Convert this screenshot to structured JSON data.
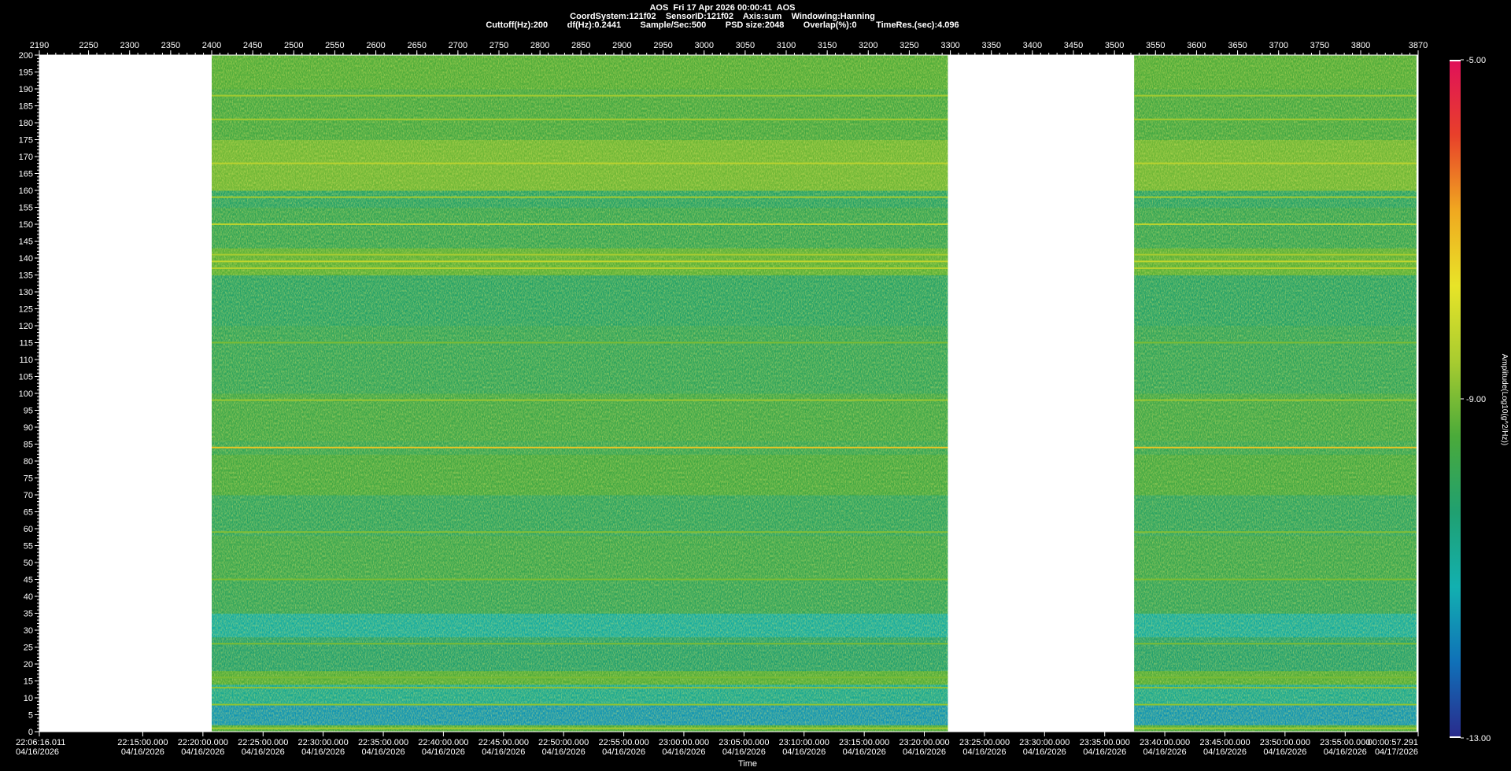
{
  "header": {
    "line1": "AOS  Fri 17 Apr 2026 00:00:41  AOS",
    "line2": "CoordSystem:121f02    SensorID:121f02    Axis:sum    Windowing:Hanning",
    "line3": "Cuttoff(Hz):200        df(Hz):0.2441        Sample/Sec:500        PSD size:2048        Overlap(%):0        TimeRes.(sec):4.096"
  },
  "chart_data": {
    "type": "heatmap",
    "title": "AOS  Fri 17 Apr 2026 00:00:41  AOS",
    "xlabel": "Time",
    "ylabel": "",
    "colorbar_label": "Amplitude(Log10(g^2/Hz))",
    "top_axis": {
      "range": [
        2190,
        3870
      ],
      "ticks": [
        2190,
        2250,
        2300,
        2350,
        2400,
        2450,
        2500,
        2550,
        2600,
        2650,
        2700,
        2750,
        2800,
        2850,
        2900,
        2950,
        3000,
        3050,
        3100,
        3150,
        3200,
        3250,
        3300,
        3350,
        3400,
        3450,
        3500,
        3550,
        3600,
        3650,
        3700,
        3750,
        3800,
        3870
      ]
    },
    "yaxis": {
      "range": [
        0,
        200
      ],
      "ticks": [
        0,
        5,
        10,
        15,
        20,
        25,
        30,
        35,
        40,
        45,
        50,
        55,
        60,
        65,
        70,
        75,
        80,
        85,
        90,
        95,
        100,
        105,
        110,
        115,
        120,
        125,
        130,
        135,
        140,
        145,
        150,
        155,
        160,
        165,
        170,
        175,
        180,
        185,
        190,
        195,
        200
      ]
    },
    "bottom_axis": {
      "ticks": [
        {
          "pos": 2190,
          "time": "22:06:16.011",
          "date": "04/16/2026"
        },
        {
          "pos": 2316,
          "time": "22:15:00.000",
          "date": "04/16/2026"
        },
        {
          "pos": 2389.3,
          "time": "22:20:00.000",
          "date": "04/16/2026"
        },
        {
          "pos": 2462.6,
          "time": "22:25:00.000",
          "date": "04/16/2026"
        },
        {
          "pos": 2535.8,
          "time": "22:30:00.000",
          "date": "04/16/2026"
        },
        {
          "pos": 2609.1,
          "time": "22:35:00.000",
          "date": "04/16/2026"
        },
        {
          "pos": 2682.3,
          "time": "22:40:00.000",
          "date": "04/16/2026"
        },
        {
          "pos": 2755.6,
          "time": "22:45:00.000",
          "date": "04/16/2026"
        },
        {
          "pos": 2828.8,
          "time": "22:50:00.000",
          "date": "04/16/2026"
        },
        {
          "pos": 2902.1,
          "time": "22:55:00.000",
          "date": "04/16/2026"
        },
        {
          "pos": 2975.3,
          "time": "23:00:00.000",
          "date": "04/16/2026"
        },
        {
          "pos": 3048.6,
          "time": "23:05:00.000",
          "date": "04/16/2026"
        },
        {
          "pos": 3121.8,
          "time": "23:10:00.000",
          "date": "04/16/2026"
        },
        {
          "pos": 3195.1,
          "time": "23:15:00.000",
          "date": "04/16/2026"
        },
        {
          "pos": 3268.3,
          "time": "23:20:00.000",
          "date": "04/16/2026"
        },
        {
          "pos": 3341.6,
          "time": "23:25:00.000",
          "date": "04/16/2026"
        },
        {
          "pos": 3414.8,
          "time": "23:30:00.000",
          "date": "04/16/2026"
        },
        {
          "pos": 3488.1,
          "time": "23:35:00.000",
          "date": "04/16/2026"
        },
        {
          "pos": 3561.3,
          "time": "23:40:00.000",
          "date": "04/16/2026"
        },
        {
          "pos": 3634.6,
          "time": "23:45:00.000",
          "date": "04/16/2026"
        },
        {
          "pos": 3707.8,
          "time": "23:50:00.000",
          "date": "04/16/2026"
        },
        {
          "pos": 3781.1,
          "time": "23:55:00.000",
          "date": "04/16/2026"
        },
        {
          "pos": 3870,
          "time": "00:00:57.291",
          "date": "04/17/2026"
        }
      ]
    },
    "colorbar": {
      "range": [
        -13.0,
        -5.0
      ],
      "ticks": [
        {
          "value": -5.0,
          "label": "-5.00"
        },
        {
          "value": -9.0,
          "label": "-9.00"
        },
        {
          "value": -13.0,
          "label": "-13.00"
        }
      ],
      "stops": [
        "#2a2a8c",
        "#1070b8",
        "#12b0b0",
        "#20a070",
        "#4aaa3a",
        "#a8cc30",
        "#e8e428",
        "#f0a820",
        "#e8402a",
        "#e0105a"
      ]
    },
    "data_segments": [
      {
        "x_start": 2400,
        "x_end": 3297
      },
      {
        "x_start": 3524,
        "x_end": 3868
      }
    ],
    "no_data_color": "#ffffff",
    "bands": [
      {
        "f_lo": 0,
        "f_hi": 2,
        "level": -9.5
      },
      {
        "f_lo": 2,
        "f_hi": 8,
        "level": -11.6
      },
      {
        "f_lo": 8,
        "f_hi": 14,
        "level": -10.8
      },
      {
        "f_lo": 14,
        "f_hi": 18,
        "level": -9.4
      },
      {
        "f_lo": 18,
        "f_hi": 28,
        "level": -10.3
      },
      {
        "f_lo": 28,
        "f_hi": 35,
        "level": -11.0
      },
      {
        "f_lo": 35,
        "f_hi": 45,
        "level": -10.0
      },
      {
        "f_lo": 45,
        "f_hi": 58,
        "level": -9.8
      },
      {
        "f_lo": 58,
        "f_hi": 70,
        "level": -10.1
      },
      {
        "f_lo": 70,
        "f_hi": 82,
        "level": -9.6
      },
      {
        "f_lo": 82,
        "f_hi": 86,
        "level": -9.9
      },
      {
        "f_lo": 86,
        "f_hi": 100,
        "level": -9.7
      },
      {
        "f_lo": 100,
        "f_hi": 120,
        "level": -10.0
      },
      {
        "f_lo": 120,
        "f_hi": 135,
        "level": -10.2
      },
      {
        "f_lo": 135,
        "f_hi": 143,
        "level": -9.3
      },
      {
        "f_lo": 143,
        "f_hi": 155,
        "level": -9.9
      },
      {
        "f_lo": 155,
        "f_hi": 160,
        "level": -10.2
      },
      {
        "f_lo": 160,
        "f_hi": 175,
        "level": -9.1
      },
      {
        "f_lo": 175,
        "f_hi": 190,
        "level": -9.6
      },
      {
        "f_lo": 190,
        "f_hi": 200,
        "level": -9.4
      }
    ],
    "lines": [
      {
        "freq": 1,
        "level": -8.6
      },
      {
        "freq": 8,
        "level": -8.8
      },
      {
        "freq": 13,
        "level": -8.8
      },
      {
        "freq": 16,
        "level": -9.0
      },
      {
        "freq": 26,
        "level": -9.0
      },
      {
        "freq": 45,
        "level": -9.0
      },
      {
        "freq": 59,
        "level": -8.9
      },
      {
        "freq": 84,
        "level": -7.2
      },
      {
        "freq": 98,
        "level": -8.7
      },
      {
        "freq": 115,
        "level": -9.0
      },
      {
        "freq": 137,
        "level": -8.3
      },
      {
        "freq": 139,
        "level": -8.2
      },
      {
        "freq": 141,
        "level": -8.6
      },
      {
        "freq": 150,
        "level": -8.3
      },
      {
        "freq": 158,
        "level": -8.6
      },
      {
        "freq": 168,
        "level": -8.3
      },
      {
        "freq": 181,
        "level": -8.6
      },
      {
        "freq": 188,
        "level": -8.6
      }
    ]
  }
}
